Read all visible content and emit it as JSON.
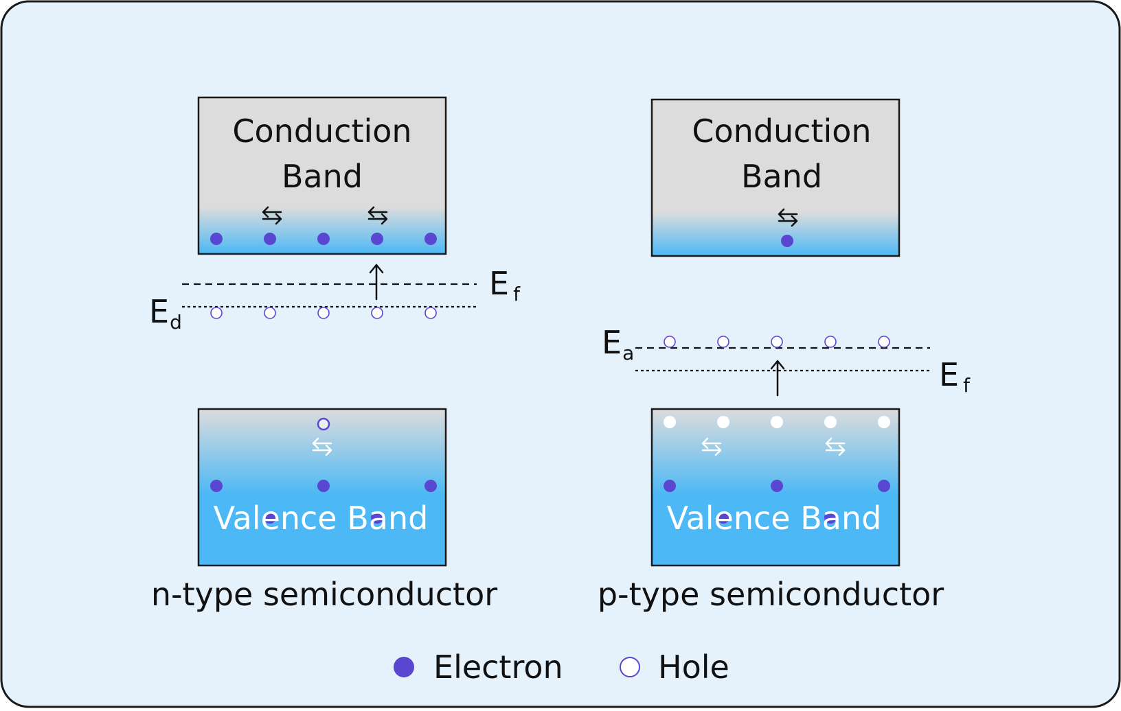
{
  "n_type": {
    "conduction_band": {
      "line1": "Conduction",
      "line2": "Band"
    },
    "valence_band": {
      "label": "Valence Band"
    },
    "fermi_level": {
      "symbol": "E",
      "subscript": "f"
    },
    "donor_level": {
      "symbol": "E",
      "subscript": "d"
    },
    "caption": "n-type semiconductor"
  },
  "p_type": {
    "conduction_band": {
      "line1": "Conduction",
      "line2": "Band"
    },
    "valence_band": {
      "label": "Valence Band"
    },
    "fermi_level": {
      "symbol": "E",
      "subscript": "f"
    },
    "acceptor_level": {
      "symbol": "E",
      "subscript": "a"
    },
    "caption": "p-type semiconductor"
  },
  "legend": {
    "electron": "Electron",
    "hole": "Hole"
  },
  "colors": {
    "background": "#e5f1fb",
    "band_gray": "#dcdcdc",
    "band_blue": "#4cb8f5",
    "electron": "#5a47d1",
    "outline": "#1a1a1a"
  }
}
